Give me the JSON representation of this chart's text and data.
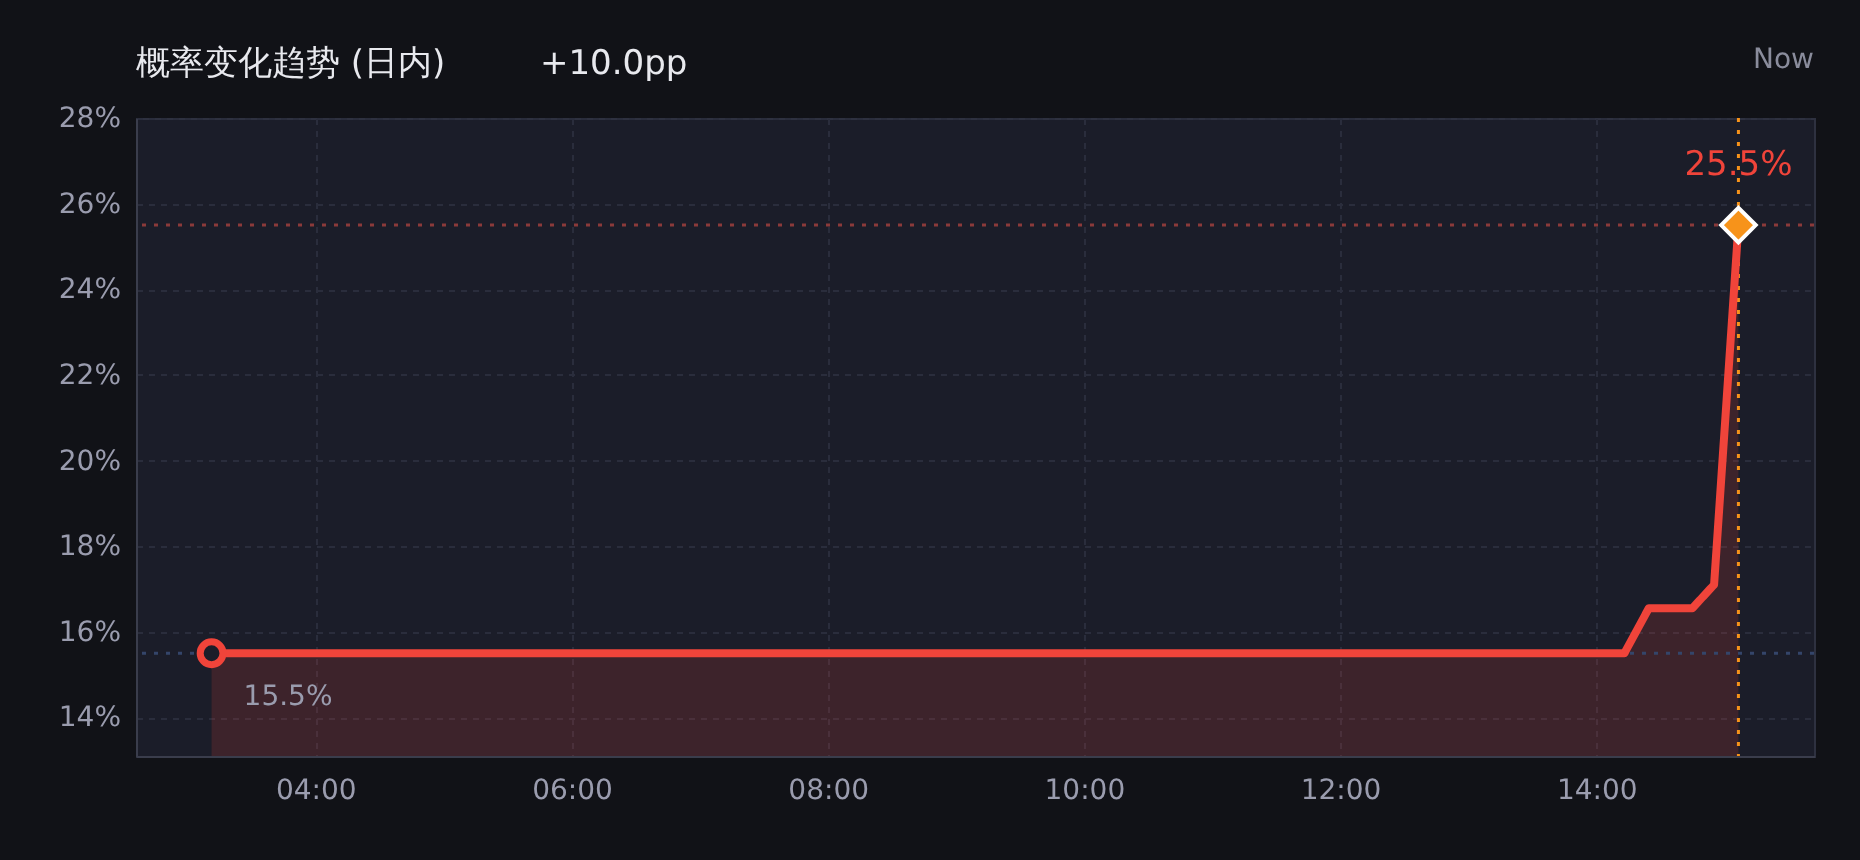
{
  "chart_data": {
    "type": "area",
    "title": "概率变化趋势 (日内)",
    "subtitle": "+10.0pp",
    "xlim": [
      2.6,
      15.7
    ],
    "ylim": [
      13.1,
      28
    ],
    "xticks": [
      {
        "value": 4,
        "label": "04:00"
      },
      {
        "value": 6,
        "label": "06:00"
      },
      {
        "value": 8,
        "label": "08:00"
      },
      {
        "value": 10,
        "label": "10:00"
      },
      {
        "value": 12,
        "label": "12:00"
      },
      {
        "value": 14,
        "label": "14:00"
      }
    ],
    "yticks": [
      {
        "value": 14,
        "label": "14%"
      },
      {
        "value": 16,
        "label": "16%"
      },
      {
        "value": 18,
        "label": "18%"
      },
      {
        "value": 20,
        "label": "20%"
      },
      {
        "value": 22,
        "label": "22%"
      },
      {
        "value": 24,
        "label": "24%"
      },
      {
        "value": 26,
        "label": "26%"
      },
      {
        "value": 28,
        "label": "28%"
      }
    ],
    "grid": true,
    "series": [
      {
        "color": "#f0443a",
        "x": [
          3.19,
          14.22,
          14.41,
          14.75,
          14.92,
          15.11
        ],
        "values": [
          15.5,
          15.5,
          16.55,
          16.55,
          17.1,
          25.5
        ]
      },
      {
        "type": "scatter",
        "marker": "circle",
        "color": "#f0443a",
        "x": [
          3.19
        ],
        "values": [
          15.5
        ]
      },
      {
        "type": "scatter",
        "marker": "diamond",
        "color": "#f7931a",
        "x": [
          15.11
        ],
        "values": [
          25.5
        ]
      }
    ],
    "ref_lines": [
      {
        "axis": "y",
        "value": 25.5,
        "color": "#8b3a3a",
        "line_style": "dotted"
      },
      {
        "axis": "y",
        "value": 15.5,
        "color": "#34456a",
        "line_style": "dotted"
      },
      {
        "axis": "x",
        "value": 15.11,
        "color": "#f7931a",
        "line_style": "dotted"
      }
    ],
    "annotations": [
      {
        "text": "25.5%",
        "x": 15.11,
        "y": 25.5
      },
      {
        "text": "15.5%",
        "x": 3.19,
        "y": 15.5
      },
      "Now"
    ]
  }
}
